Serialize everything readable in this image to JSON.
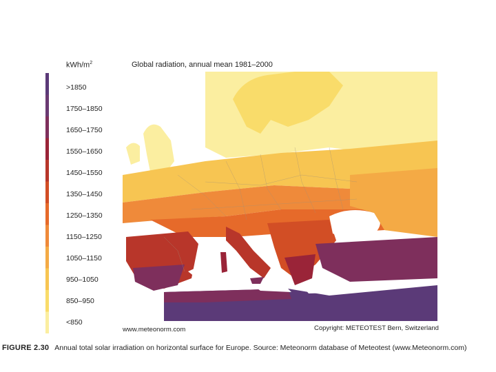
{
  "legend": {
    "unit": "kWh/m",
    "unit_sup": "2",
    "classes": [
      {
        "label": ">1850",
        "color": "#5b3a78"
      },
      {
        "label": "1750–1850",
        "color": "#6a3a72"
      },
      {
        "label": "1650–1750",
        "color": "#7e2f5c"
      },
      {
        "label": "1550–1650",
        "color": "#9a2438"
      },
      {
        "label": "1450–1550",
        "color": "#b8362a"
      },
      {
        "label": "1350–1450",
        "color": "#d24e25"
      },
      {
        "label": "1250–1350",
        "color": "#e66a2a"
      },
      {
        "label": "1150–1250",
        "color": "#ef8a3a"
      },
      {
        "label": "1050–1150",
        "color": "#f4aa45"
      },
      {
        "label": "950–1050",
        "color": "#f7c552"
      },
      {
        "label": "850–950",
        "color": "#f9dc6a"
      },
      {
        "label": "<850",
        "color": "#fbeea0"
      }
    ]
  },
  "map": {
    "title": "Global radiation, annual mean 1981–2000",
    "credit_left": "www.meteonorm.com",
    "credit_right": "Copyright: METEOTEST Bern, Switzerland"
  },
  "caption": {
    "number": "FIGURE 2.30",
    "text": "Annual total solar irradiation on horizontal surface for Europe. Source: Meteonorm database of Meteotest (www.Meteonorm.com)"
  }
}
